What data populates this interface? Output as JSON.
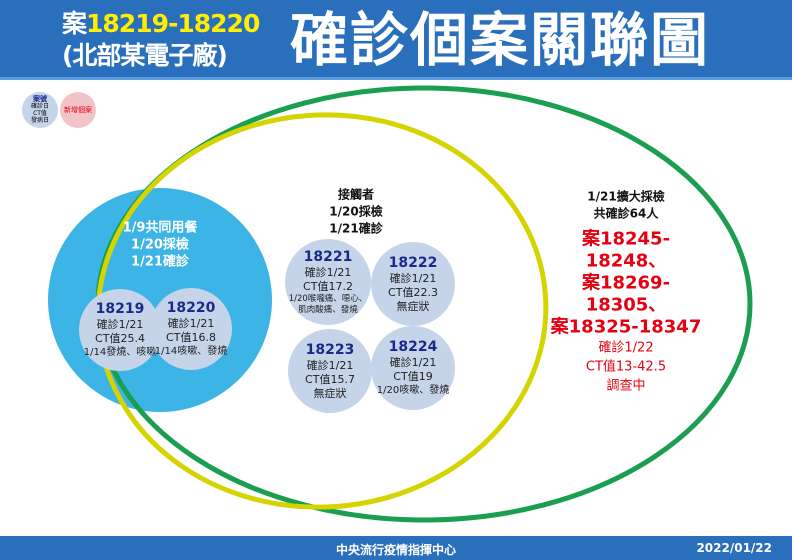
{
  "header": {
    "case_prefix": "案",
    "case_range": "18219-18220",
    "location": "(北部某電子廠)",
    "title": "確診個案關聯圖"
  },
  "legend": {
    "case_label": "案號",
    "lines": [
      "確診日",
      "CT值",
      "發病日"
    ],
    "new_case": "新增個案"
  },
  "cluster_meal": {
    "lines": [
      "1/9共同用餐",
      "1/20採檢",
      "1/21確診"
    ]
  },
  "contacts": {
    "lines": [
      "接觸者",
      "1/20採檢",
      "1/21確診"
    ]
  },
  "cases": [
    {
      "id": "18219",
      "lines": [
        "確診1/21",
        "CT值25.4",
        "1/14發燒、咳嗽"
      ]
    },
    {
      "id": "18220",
      "lines": [
        "確診1/21",
        "CT值16.8",
        "1/14咳嗽、發燒"
      ]
    },
    {
      "id": "18221",
      "lines": [
        "確診1/21",
        "CT值17.2",
        "1/20喉嚨痛、噁心、",
        "肌肉酸痛、發燒"
      ]
    },
    {
      "id": "18222",
      "lines": [
        "確診1/21",
        "CT值22.3",
        "無症狀"
      ]
    },
    {
      "id": "18223",
      "lines": [
        "確診1/21",
        "CT值15.7",
        "無症狀"
      ]
    },
    {
      "id": "18224",
      "lines": [
        "確診1/21",
        "CT值19",
        "1/20咳嗽、發燒"
      ]
    }
  ],
  "expanded": {
    "lines": [
      "1/21擴大採檢",
      "共確診64人"
    ],
    "cases": [
      "案18245-18248、",
      "案18269-18305、",
      "案18325-18347"
    ],
    "details": [
      "確診1/22",
      "CT值13-42.5",
      "調查中"
    ]
  },
  "footer": {
    "org": "中央流行疫情指揮中心",
    "date": "2022/01/22"
  },
  "colors": {
    "header": "#2a6fbb",
    "cluster": "#3cb4e6",
    "bubble": "#c6d4ea",
    "outer_ring": "#1a9e50",
    "inner_ring": "#d6d400",
    "new_case": "#e60012"
  }
}
